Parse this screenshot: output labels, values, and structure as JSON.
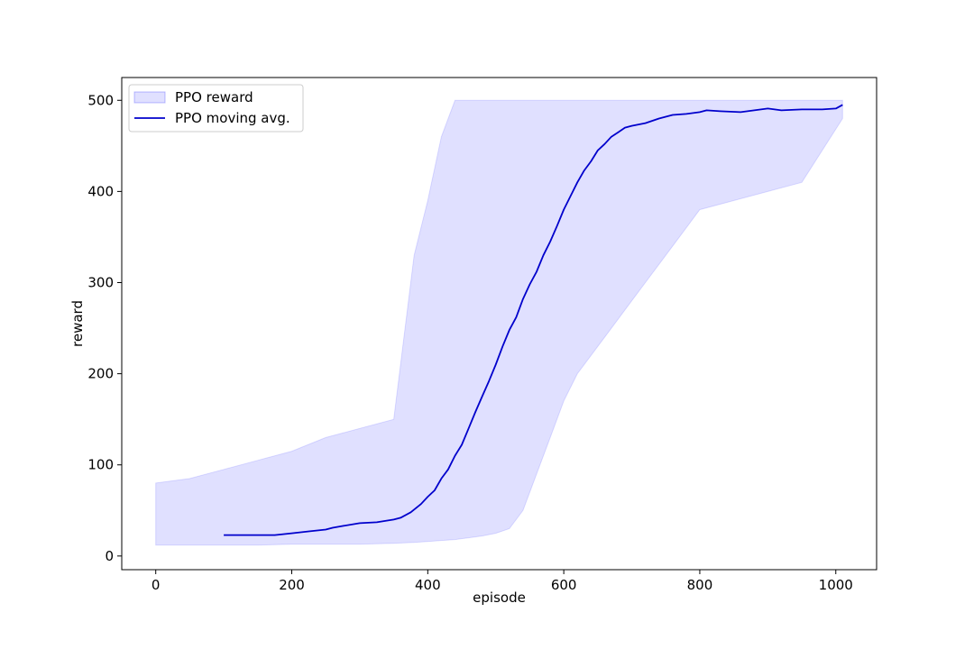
{
  "chart_data": {
    "type": "line",
    "title": "",
    "xlabel": "episode",
    "ylabel": "reward",
    "xlim": [
      -50,
      1060
    ],
    "ylim": [
      -15,
      525
    ],
    "xticks": [
      0,
      200,
      400,
      600,
      800,
      1000
    ],
    "yticks": [
      0,
      100,
      200,
      300,
      400,
      500
    ],
    "grid": false,
    "legend_position": "top-left",
    "series": [
      {
        "name": "PPO reward",
        "kind": "band",
        "color": "#0000ff",
        "alpha": 0.12,
        "x": [
          0,
          50,
          100,
          150,
          200,
          250,
          300,
          350,
          380,
          400,
          420,
          440,
          460,
          480,
          500,
          520,
          540,
          560,
          580,
          600,
          620,
          640,
          660,
          680,
          700,
          720,
          740,
          760,
          780,
          800,
          850,
          900,
          950,
          1010
        ],
        "lower": [
          12,
          12,
          12,
          12,
          13,
          13,
          13,
          14,
          15,
          16,
          17,
          18,
          20,
          22,
          25,
          30,
          50,
          90,
          130,
          170,
          200,
          220,
          240,
          260,
          280,
          300,
          320,
          340,
          360,
          380,
          390,
          400,
          410,
          480
        ],
        "upper": [
          80,
          85,
          95,
          105,
          115,
          130,
          140,
          150,
          330,
          390,
          460,
          500,
          500,
          500,
          500,
          500,
          500,
          500,
          500,
          500,
          500,
          500,
          500,
          500,
          500,
          500,
          500,
          500,
          500,
          500,
          500,
          500,
          500,
          500
        ]
      },
      {
        "name": "PPO moving avg.",
        "kind": "line",
        "color": "#0000cc",
        "x": [
          100,
          150,
          175,
          200,
          225,
          250,
          260,
          275,
          300,
          325,
          350,
          360,
          375,
          390,
          400,
          410,
          420,
          430,
          440,
          450,
          460,
          470,
          480,
          490,
          500,
          510,
          520,
          530,
          540,
          550,
          560,
          570,
          580,
          590,
          600,
          610,
          620,
          630,
          640,
          650,
          660,
          670,
          680,
          690,
          700,
          720,
          740,
          760,
          780,
          800,
          810,
          830,
          860,
          880,
          900,
          920,
          950,
          980,
          1000,
          1010
        ],
        "y": [
          23,
          23,
          23,
          25,
          27,
          29,
          31,
          33,
          36,
          37,
          40,
          42,
          48,
          57,
          65,
          72,
          85,
          95,
          110,
          122,
          140,
          158,
          175,
          192,
          210,
          230,
          248,
          262,
          282,
          298,
          312,
          330,
          345,
          362,
          380,
          395,
          410,
          423,
          433,
          445,
          452,
          460,
          465,
          470,
          472,
          475,
          480,
          484,
          485,
          487,
          489,
          488,
          487,
          489,
          491,
          489,
          490,
          490,
          491,
          495
        ]
      }
    ]
  }
}
